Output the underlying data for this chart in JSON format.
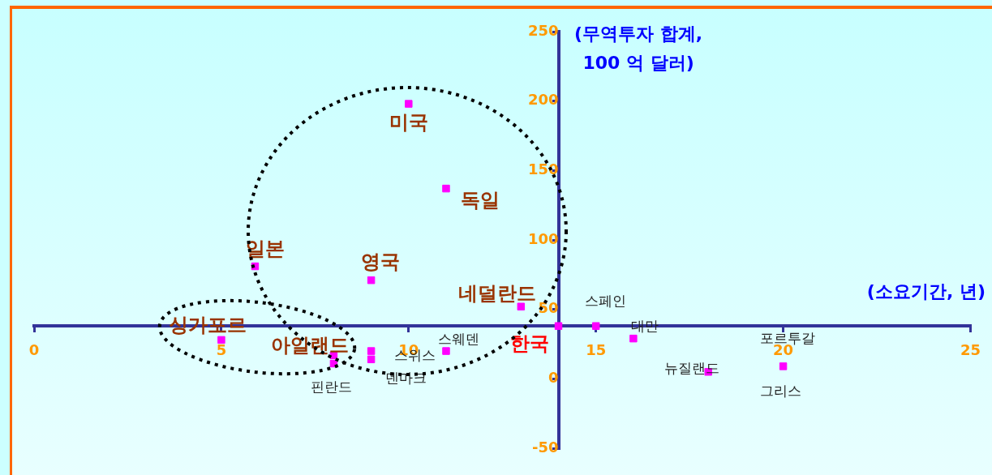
{
  "chart_data": {
    "type": "scatter",
    "xlabel": "(소요기간, 년)",
    "ylabel": "(무역투자  합계,\n100 억 달러)",
    "xlim": [
      0,
      25
    ],
    "xticks": [
      0,
      5,
      10,
      15,
      20,
      25
    ],
    "ylim": [
      -50,
      250
    ],
    "yticks": [
      -50,
      0,
      50,
      100,
      150,
      200,
      250
    ],
    "grid": false,
    "legend": false,
    "marker": "square",
    "series": [
      {
        "color": "#ff00ff",
        "x": [
          10,
          11,
          5.9,
          9,
          13,
          14,
          15,
          16,
          11,
          9,
          9,
          5,
          8,
          8,
          18,
          20
        ],
        "values": [
          198,
          137,
          81,
          71,
          52,
          38,
          38,
          29,
          20,
          20,
          14,
          28,
          17,
          11,
          5,
          9
        ]
      }
    ],
    "annotations": [
      {
        "text": "미국",
        "x": 10,
        "y": 198
      },
      {
        "text": "독일",
        "x": 11,
        "y": 137
      },
      {
        "text": "일본",
        "x": 5.9,
        "y": 81
      },
      {
        "text": "영국",
        "x": 9,
        "y": 71
      },
      {
        "text": "네덜란드",
        "x": 13,
        "y": 52
      },
      {
        "text": "한국",
        "x": 14,
        "y": 38
      },
      {
        "text": "스페인",
        "x": 15,
        "y": 38
      },
      {
        "text": "대만",
        "x": 16,
        "y": 29
      },
      {
        "text": "스웨덴",
        "x": 11,
        "y": 20
      },
      {
        "text": "스위스",
        "x": 9,
        "y": 20
      },
      {
        "text": "덴마크",
        "x": 9,
        "y": 14
      },
      {
        "text": "싱가포르",
        "x": 5,
        "y": 28
      },
      {
        "text": "아일랜드",
        "x": 8,
        "y": 17
      },
      {
        "text": "핀란드",
        "x": 8,
        "y": 11
      },
      {
        "text": "뉴질랜드",
        "x": 18,
        "y": 5
      },
      {
        "text": "포르투갈",
        "x": 20,
        "y": 9
      },
      {
        "text": "그리스",
        "x": 20,
        "y": 9
      }
    ]
  }
}
